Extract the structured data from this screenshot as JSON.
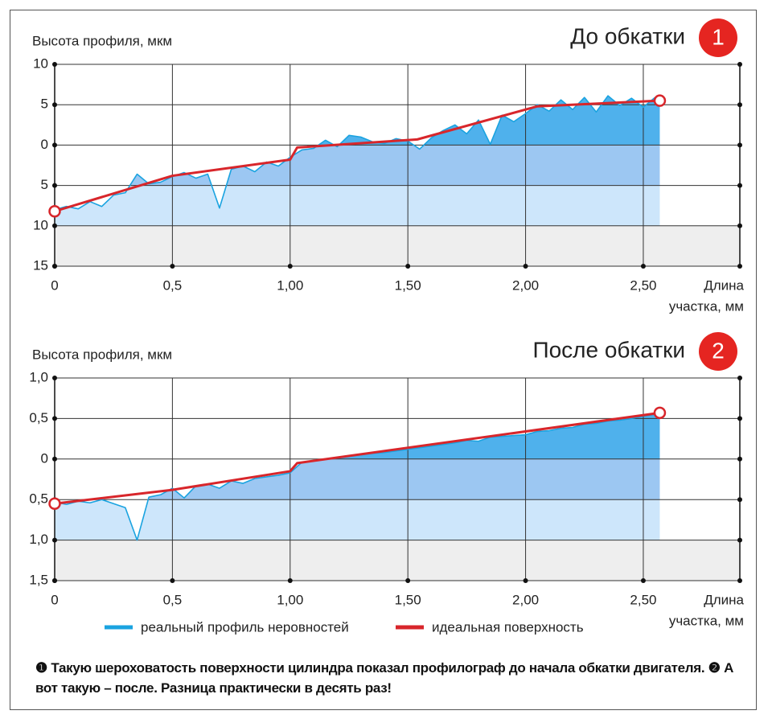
{
  "chart_data": [
    {
      "type": "line",
      "title": "До обкатки",
      "badge": "1",
      "y_label": "Высота профиля, мкм",
      "x_label": [
        "Длина",
        "участка, мм"
      ],
      "xlim": [
        0,
        2.91
      ],
      "ylim": [
        -15,
        10
      ],
      "xticks": [
        0,
        {
          "value": 0.5,
          "label": "0,5"
        },
        {
          "value": 1,
          "label": "1,00"
        },
        {
          "value": 1.5,
          "label": "1,50"
        },
        {
          "value": 2,
          "label": "2,00"
        },
        {
          "value": 2.5,
          "label": "2,50"
        }
      ],
      "yticks": [
        10,
        {
          "value": 5,
          "label": "5"
        },
        0,
        {
          "value": -5,
          "label": "5"
        },
        {
          "value": -10,
          "label": "10"
        },
        {
          "value": -15,
          "label": "15"
        }
      ],
      "grid": true,
      "series": [
        {
          "color": "#1aa3e0",
          "x": [
            0,
            0.05,
            0.1,
            0.15,
            0.2,
            0.25,
            0.3,
            0.35,
            0.4,
            0.45,
            0.5,
            0.55,
            0.6,
            0.65,
            0.7,
            0.75,
            0.8,
            0.85,
            0.9,
            0.95,
            1.0,
            1.05,
            1.1,
            1.15,
            1.2,
            1.25,
            1.3,
            1.35,
            1.4,
            1.45,
            1.5,
            1.55,
            1.6,
            1.65,
            1.7,
            1.75,
            1.8,
            1.85,
            1.9,
            1.95,
            2.0,
            2.05,
            2.1,
            2.15,
            2.2,
            2.25,
            2.3,
            2.35,
            2.4,
            2.45,
            2.5,
            2.55,
            2.57
          ],
          "values": [
            -8.0,
            -7.6,
            -7.9,
            -7.0,
            -7.6,
            -6.2,
            -5.9,
            -3.6,
            -4.8,
            -4.6,
            -3.9,
            -3.4,
            -4.1,
            -3.6,
            -7.8,
            -3.0,
            -2.6,
            -3.3,
            -2.1,
            -2.6,
            -1.5,
            -0.6,
            -0.4,
            0.6,
            -0.2,
            1.2,
            1.0,
            0.4,
            0.2,
            0.8,
            0.5,
            -0.5,
            0.9,
            1.8,
            2.5,
            1.4,
            3.1,
            0.1,
            3.7,
            2.9,
            3.9,
            5.0,
            4.2,
            5.6,
            4.4,
            5.9,
            4.1,
            6.1,
            4.9,
            5.8,
            4.7,
            5.9,
            5.4
          ]
        },
        {
          "color": "#d8262b",
          "x": [
            0,
            0.5,
            1.0,
            1.03,
            1.54,
            2.05,
            2.57
          ],
          "values": [
            -8.2,
            -3.8,
            -1.8,
            -0.3,
            0.7,
            4.8,
            5.5
          ]
        }
      ]
    },
    {
      "type": "line",
      "title": "После обкатки",
      "badge": "2",
      "y_label": "Высота профиля, мкм",
      "x_label": [
        "Длина",
        "участка, мм"
      ],
      "xlim": [
        0,
        2.91
      ],
      "ylim": [
        -1.5,
        1
      ],
      "xticks": [
        0,
        {
          "value": 0.5,
          "label": "0,5"
        },
        {
          "value": 1,
          "label": "1,00"
        },
        {
          "value": 1.5,
          "label": "1,50"
        },
        {
          "value": 2,
          "label": "2,00"
        },
        {
          "value": 2.5,
          "label": "2,50"
        }
      ],
      "yticks": [
        {
          "value": 1,
          "label": "1,0"
        },
        {
          "value": 0.5,
          "label": "0,5"
        },
        0,
        {
          "value": -0.5,
          "label": "0,5"
        },
        {
          "value": -1,
          "label": "1,0"
        },
        {
          "value": -1.5,
          "label": "1,5"
        }
      ],
      "grid": true,
      "series": [
        {
          "name": "реальный профиль неровностей",
          "color": "#1aa3e0",
          "x": [
            0,
            0.05,
            0.1,
            0.15,
            0.2,
            0.25,
            0.3,
            0.35,
            0.4,
            0.45,
            0.5,
            0.55,
            0.6,
            0.65,
            0.7,
            0.75,
            0.8,
            0.85,
            0.9,
            0.95,
            1.0,
            1.05,
            1.1,
            1.15,
            1.2,
            1.25,
            1.3,
            1.35,
            1.4,
            1.45,
            1.5,
            1.55,
            1.6,
            1.65,
            1.7,
            1.75,
            1.8,
            1.85,
            1.9,
            1.95,
            2.0,
            2.05,
            2.1,
            2.15,
            2.2,
            2.25,
            2.3,
            2.35,
            2.4,
            2.45,
            2.5,
            2.55,
            2.57
          ],
          "values": [
            -0.53,
            -0.56,
            -0.52,
            -0.54,
            -0.5,
            -0.55,
            -0.6,
            -1.0,
            -0.47,
            -0.44,
            -0.36,
            -0.48,
            -0.33,
            -0.31,
            -0.36,
            -0.27,
            -0.3,
            -0.24,
            -0.22,
            -0.2,
            -0.17,
            -0.04,
            -0.02,
            0.0,
            0.01,
            0.04,
            0.05,
            0.07,
            0.08,
            0.1,
            0.12,
            0.14,
            0.16,
            0.18,
            0.2,
            0.23,
            0.22,
            0.27,
            0.28,
            0.29,
            0.3,
            0.34,
            0.35,
            0.38,
            0.39,
            0.43,
            0.44,
            0.47,
            0.48,
            0.5,
            0.53,
            0.55,
            0.56
          ]
        },
        {
          "name": "идеальная поверхность",
          "color": "#d8262b",
          "x": [
            0,
            0.5,
            1.0,
            1.03,
            2.57
          ],
          "values": [
            -0.55,
            -0.38,
            -0.15,
            -0.05,
            0.57
          ]
        }
      ]
    }
  ],
  "caption": "❶ Такую шероховатость поверхности цилиндра показал профилограф до начала обкатки двигателя. ❷ А вот такую – после. Разница практически в десять раз!"
}
